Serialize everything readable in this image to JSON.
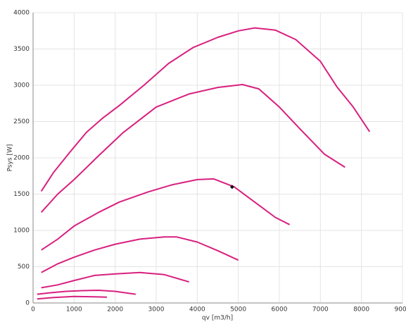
{
  "chart_data": {
    "type": "line",
    "xlabel": "qv [m3/h]",
    "ylabel": "Psys [W]",
    "xlim": [
      0,
      9000
    ],
    "ylim": [
      0,
      4000
    ],
    "xticks": [
      0,
      1000,
      2000,
      3000,
      4000,
      5000,
      6000,
      7000,
      8000,
      9000
    ],
    "yticks": [
      0,
      500,
      1000,
      1500,
      2000,
      2500,
      3000,
      3500,
      4000
    ],
    "grid": true,
    "series": [
      {
        "color": "#d8207f",
        "x": [
          200,
          500,
          900,
          1300,
          1700,
          2100,
          2700,
          3300,
          3900,
          4500,
          5000,
          5400,
          5900,
          6400,
          7000,
          7400,
          7800,
          8200
        ],
        "values": [
          1540,
          1800,
          2080,
          2350,
          2550,
          2720,
          3000,
          3300,
          3520,
          3660,
          3750,
          3790,
          3760,
          3630,
          3330,
          2980,
          2700,
          2360
        ]
      },
      {
        "color": "#d8207f",
        "x": [
          200,
          600,
          1000,
          1600,
          2200,
          3000,
          3800,
          4500,
          5100,
          5500,
          6000,
          6500,
          7100,
          7600
        ],
        "values": [
          1250,
          1500,
          1700,
          2030,
          2350,
          2700,
          2880,
          2970,
          3010,
          2950,
          2700,
          2400,
          2050,
          1870
        ]
      },
      {
        "color": "#d8207f",
        "x": [
          200,
          600,
          1000,
          1600,
          2100,
          2800,
          3400,
          4000,
          4400,
          4900,
          5400,
          5900,
          6250
        ],
        "values": [
          730,
          880,
          1060,
          1250,
          1390,
          1530,
          1630,
          1700,
          1710,
          1600,
          1390,
          1180,
          1080
        ]
      },
      {
        "color": "#d8207f",
        "x": [
          200,
          600,
          1000,
          1500,
          2000,
          2600,
          3200,
          3500,
          4000,
          4500,
          5000
        ],
        "values": [
          420,
          540,
          630,
          730,
          810,
          880,
          910,
          910,
          840,
          720,
          590
        ]
      },
      {
        "color": "#d8207f",
        "x": [
          200,
          600,
          1000,
          1500,
          2000,
          2600,
          3200,
          3800
        ],
        "values": [
          210,
          250,
          310,
          380,
          400,
          420,
          390,
          290
        ]
      },
      {
        "color": "#d8207f",
        "x": [
          100,
          400,
          800,
          1200,
          1600,
          2000,
          2500
        ],
        "values": [
          120,
          140,
          160,
          170,
          175,
          160,
          120
        ]
      },
      {
        "color": "#d8207f",
        "x": [
          100,
          500,
          1000,
          1500,
          1800
        ],
        "values": [
          55,
          75,
          90,
          85,
          80
        ]
      }
    ],
    "operating_point": {
      "x": 4850,
      "y": 1600,
      "color": "#111111"
    }
  }
}
